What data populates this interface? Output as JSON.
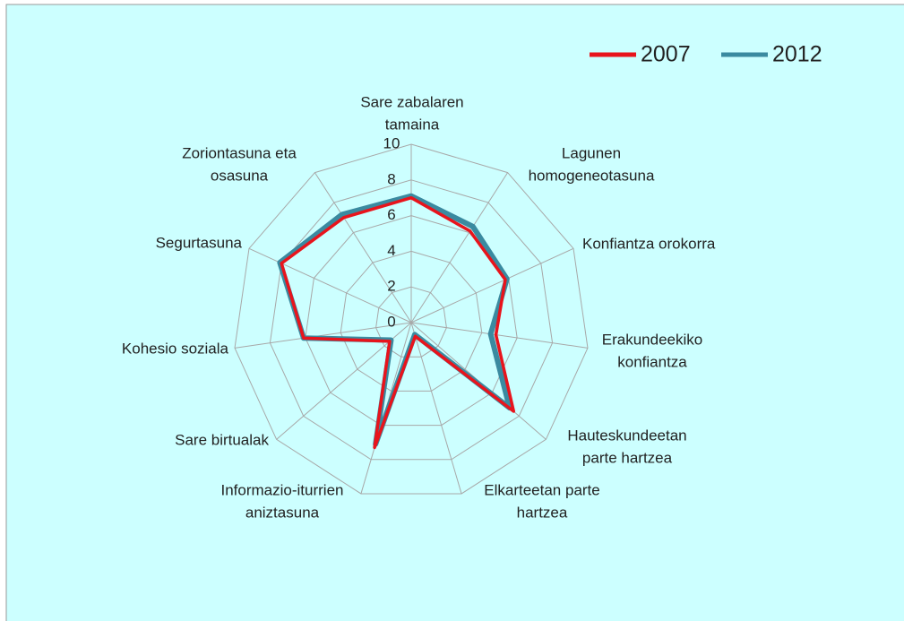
{
  "chart_data": {
    "type": "radar",
    "categories": [
      [
        "Sare zabalaren",
        "tamaina"
      ],
      [
        "Lagunen",
        "homogeneotasuna"
      ],
      [
        "Konfiantza orokorra"
      ],
      [
        "Erakundeekiko",
        "konfiantza"
      ],
      [
        "Hauteskundeetan",
        "parte hartzea"
      ],
      [
        "Elkarteetan parte",
        "hartzea"
      ],
      [
        "Informazio-iturrien",
        "aniztasuna"
      ],
      [
        "Sare birtualak"
      ],
      [
        "Kohesio soziala"
      ],
      [
        "Segurtasuna"
      ],
      [
        "Zoriontasuna eta",
        "osasuna"
      ]
    ],
    "series": [
      {
        "name": "2007",
        "color": "#e8141c",
        "values": [
          7.0,
          6.1,
          5.8,
          4.8,
          7.6,
          0.8,
          7.3,
          1.6,
          6.1,
          8.0,
          7.0
        ]
      },
      {
        "name": "2012",
        "color": "#3a8aa0",
        "values": [
          7.1,
          6.4,
          5.9,
          4.5,
          7.3,
          0.7,
          7.1,
          1.5,
          6.1,
          8.1,
          7.2
        ]
      }
    ],
    "ylim": [
      0,
      10
    ],
    "yticks": [
      0,
      2,
      4,
      6,
      8,
      10
    ],
    "grid": true,
    "legend": "top-right"
  }
}
